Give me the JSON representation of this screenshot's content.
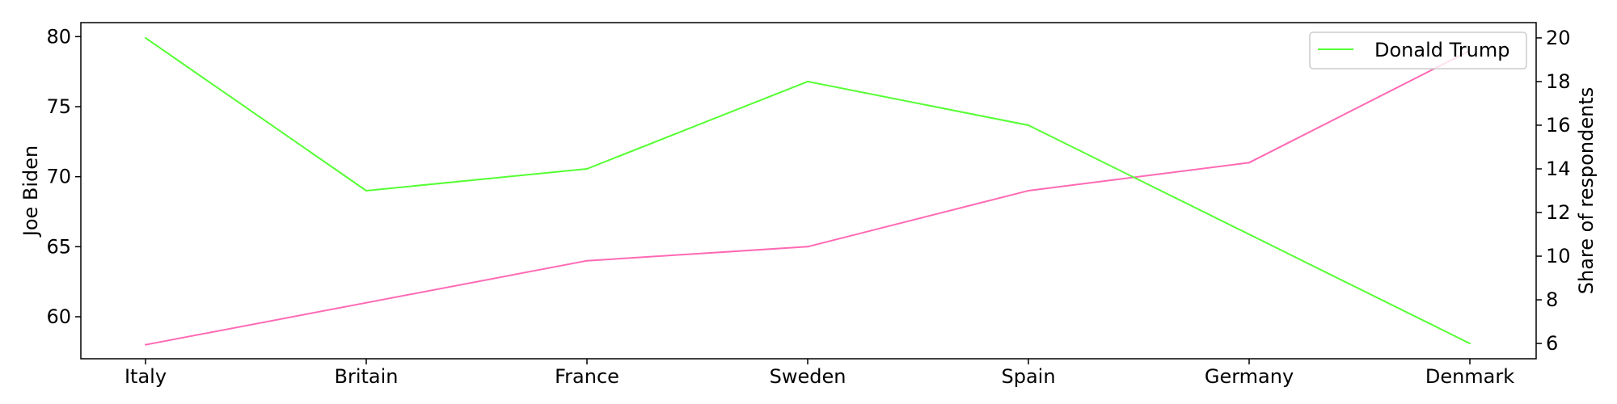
{
  "chart_data": {
    "type": "line",
    "categories": [
      "Italy",
      "Britain",
      "France",
      "Sweden",
      "Spain",
      "Germany",
      "Denmark"
    ],
    "series": [
      {
        "name": "",
        "axis": "left",
        "color": "#ff69b4",
        "values": [
          58,
          61,
          64,
          65,
          69,
          71,
          79
        ]
      },
      {
        "name": "Donald Trump",
        "axis": "right",
        "color": "#55ff33",
        "values": [
          20,
          13,
          14,
          18,
          16,
          11,
          6
        ]
      }
    ],
    "ylabel_left": "Joe Biden",
    "ylabel_right": "Share of respondents",
    "ylim_left": [
      57,
      81
    ],
    "ylim_right": [
      5.3,
      20.7
    ],
    "yticks_left": [
      "60",
      "65",
      "70",
      "75",
      "80"
    ],
    "yticks_right": [
      "6",
      "8",
      "10",
      "12",
      "14",
      "16",
      "18",
      "20"
    ],
    "legend_placement": "top-right",
    "grid": false
  }
}
